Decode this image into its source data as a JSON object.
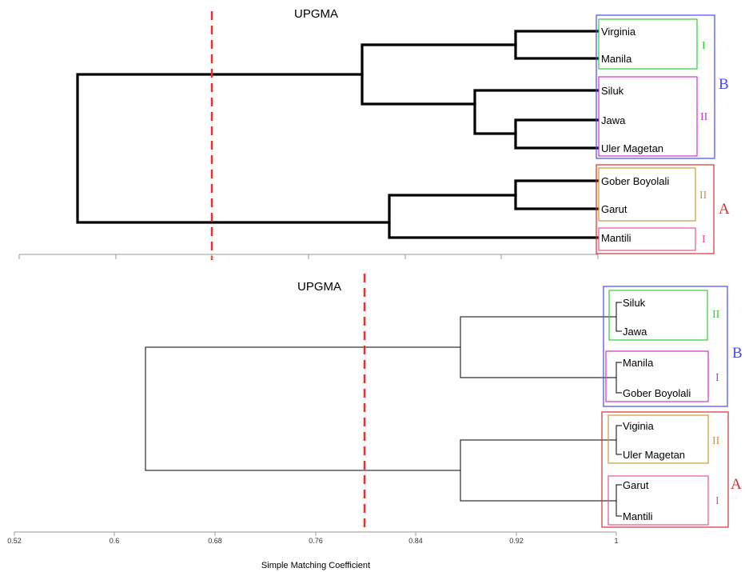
{
  "colors": {
    "group_b_box": "#4a4af0",
    "group_a_box": "#cc3333",
    "subgroup_green": "#33cc33",
    "subgroup_magenta": "#cc33cc",
    "subgroup_orange": "#cc9933",
    "subgroup_pink": "#e0559a",
    "cutoff_line": "#e83030",
    "branch": "#000000"
  },
  "dendrogram_1": {
    "title": "UPGMA",
    "leaves": [
      "Virginia",
      "Manila",
      "Siluk",
      "Jawa",
      "Uler Magetan",
      "Gober Boyolali",
      "Garut",
      "Mantili"
    ],
    "groups": [
      {
        "letter": "B",
        "subgroups": [
          {
            "label": "I",
            "members": [
              "Virginia",
              "Manila"
            ]
          },
          {
            "label": "II",
            "members": [
              "Siluk",
              "Jawa",
              "Uler Magetan"
            ]
          }
        ]
      },
      {
        "letter": "A",
        "subgroups": [
          {
            "label": "II",
            "members": [
              "Gober Boyolali",
              "Garut"
            ]
          },
          {
            "label": "I",
            "members": [
              "Mantili"
            ]
          }
        ]
      }
    ]
  },
  "dendrogram_2": {
    "title": "UPGMA",
    "leaves": [
      "Siluk",
      "Jawa",
      "Manila",
      "Gober Boyolali",
      "Viginia",
      "Uler Magetan",
      "Garut",
      "Mantili"
    ],
    "groups": [
      {
        "letter": "B",
        "subgroups": [
          {
            "label": "II",
            "members": [
              "Siluk",
              "Jawa"
            ]
          },
          {
            "label": "I",
            "members": [
              "Manila",
              "Gober Boyolali"
            ]
          }
        ]
      },
      {
        "letter": "A",
        "subgroups": [
          {
            "label": "II",
            "members": [
              "Viginia",
              "Uler Magetan"
            ]
          },
          {
            "label": "I",
            "members": [
              "Garut",
              "Mantili"
            ]
          }
        ]
      }
    ]
  },
  "axis": {
    "ticks": [
      "0.52",
      "0.6",
      "0.68",
      "0.76",
      "0.84",
      "0.92",
      "1"
    ],
    "label": "Simple Matching Coefficient"
  }
}
